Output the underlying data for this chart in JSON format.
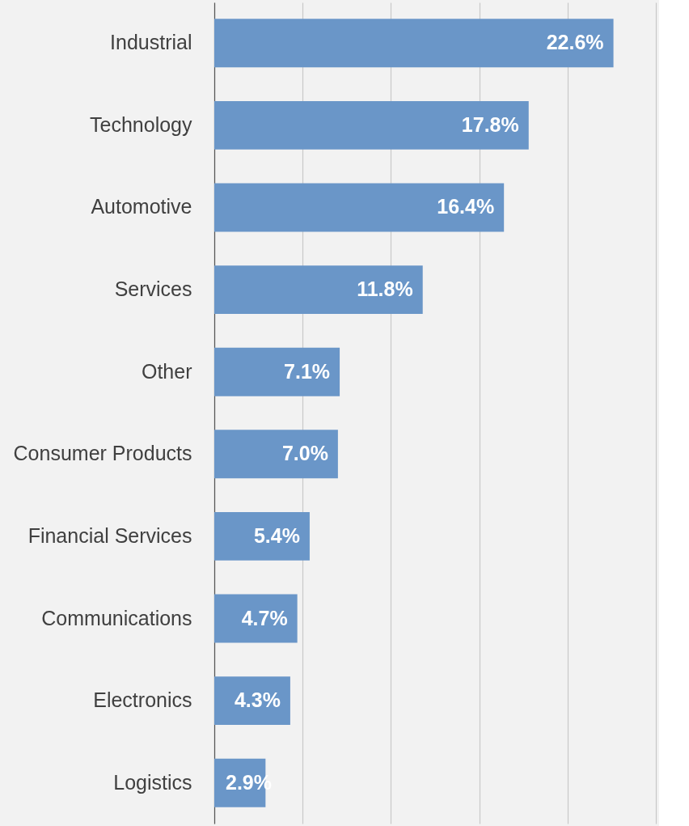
{
  "chart_data": {
    "type": "bar",
    "orientation": "horizontal",
    "categories": [
      "Industrial",
      "Technology",
      "Automotive",
      "Services",
      "Other",
      "Consumer Products",
      "Financial Services",
      "Communications",
      "Electronics",
      "Logistics"
    ],
    "values": [
      22.6,
      17.8,
      16.4,
      11.8,
      7.1,
      7.0,
      5.4,
      4.7,
      4.3,
      2.9
    ],
    "value_labels": [
      "22.6%",
      "17.8%",
      "16.4%",
      "11.8%",
      "7.1%",
      "7.0%",
      "5.4%",
      "4.7%",
      "4.3%",
      "2.9%"
    ],
    "color": "#6a96c8",
    "xlim": [
      0,
      25
    ],
    "xticks": [
      {
        "value": 0,
        "label": null
      },
      {
        "value": 5,
        "label": null
      },
      {
        "value": 10,
        "label": null
      },
      {
        "value": 15,
        "label": null
      },
      {
        "value": 20,
        "label": null
      },
      {
        "value": 25,
        "label": null
      }
    ],
    "grid": "x",
    "tick_labels": "y"
  }
}
